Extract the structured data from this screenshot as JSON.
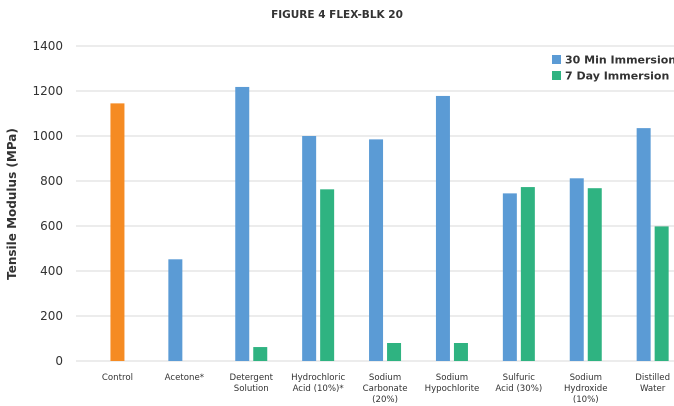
{
  "chart_data": {
    "type": "bar",
    "title": "FIGURE 4 FLEX-BLK 20",
    "xlabel": "",
    "ylabel": "Tensile Modulus (MPa)",
    "ylim": [
      0,
      1400
    ],
    "yticks": [
      0,
      200,
      400,
      600,
      800,
      1000,
      1200,
      1400
    ],
    "grid": true,
    "legend_position": "top-right",
    "categories": [
      {
        "lines": [
          "Control"
        ]
      },
      {
        "lines": [
          "Acetone*"
        ]
      },
      {
        "lines": [
          "Detergent",
          "Solution"
        ]
      },
      {
        "lines": [
          "Hydrochloric",
          "Acid (10%)*"
        ]
      },
      {
        "lines": [
          "Sodium",
          "Carbonate",
          "(20%)"
        ]
      },
      {
        "lines": [
          "Sodium",
          "Hypochlorite"
        ]
      },
      {
        "lines": [
          "Sulfuric",
          "Acid (30%)"
        ]
      },
      {
        "lines": [
          "Sodium",
          "Hydroxide",
          "(10%)"
        ]
      },
      {
        "lines": [
          "Distilled",
          "Water"
        ]
      }
    ],
    "control": {
      "value": 1145,
      "color": "#f58b23"
    },
    "series": [
      {
        "name": "30 Min Immersion",
        "color": "#5b9bd5",
        "values": [
          null,
          452,
          1218,
          1000,
          985,
          1178,
          745,
          812,
          1035
        ]
      },
      {
        "name": "7 Day Immersion",
        "color": "#2fb381",
        "values": [
          null,
          null,
          62,
          763,
          80,
          80,
          773,
          768,
          598
        ]
      }
    ]
  }
}
